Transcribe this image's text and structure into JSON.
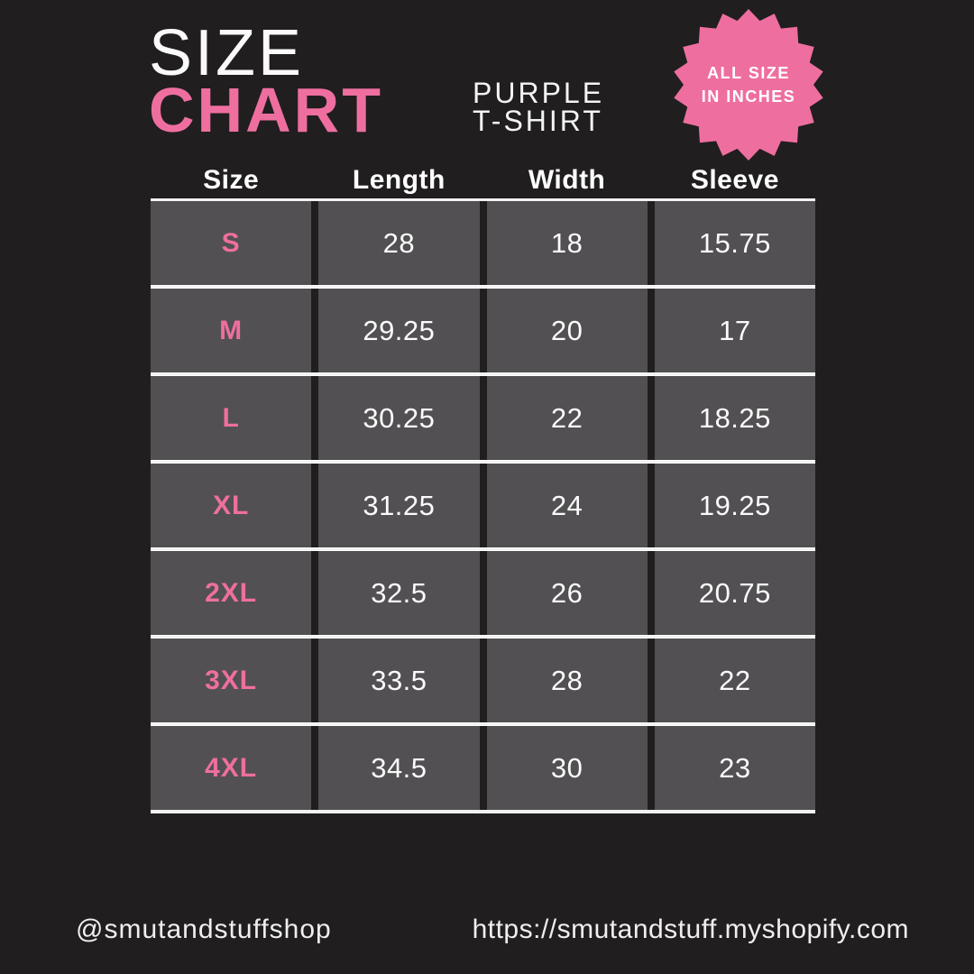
{
  "colors": {
    "background": "#211E1F",
    "accent_pink": "#EE6F9F",
    "cell_gray": "#525052",
    "text_white": "#FFFFFF"
  },
  "header": {
    "title_line1": "SIZE",
    "title_line2": "CHART",
    "subtitle": "PURPLE\nT-SHIRT",
    "badge": {
      "line1": "ALL SIZE",
      "line2": "IN INCHES"
    }
  },
  "table": {
    "columns": [
      "Size",
      "Length",
      "Width",
      "Sleeve"
    ],
    "rows": [
      {
        "size": "S",
        "length": "28",
        "width": "18",
        "sleeve": "15.75"
      },
      {
        "size": "M",
        "length": "29.25",
        "width": "20",
        "sleeve": "17"
      },
      {
        "size": "L",
        "length": "30.25",
        "width": "22",
        "sleeve": "18.25"
      },
      {
        "size": "XL",
        "length": "31.25",
        "width": "24",
        "sleeve": "19.25"
      },
      {
        "size": "2XL",
        "length": "32.5",
        "width": "26",
        "sleeve": "20.75"
      },
      {
        "size": "3XL",
        "length": "33.5",
        "width": "28",
        "sleeve": "22"
      },
      {
        "size": "4XL",
        "length": "34.5",
        "width": "30",
        "sleeve": "23"
      }
    ]
  },
  "footer": {
    "handle": "@smutandstuffshop",
    "url": "https://smutandstuff.myshopify.com"
  },
  "chart_data": {
    "type": "table",
    "title": "Size Chart — Purple T-Shirt",
    "note": "All size in inches",
    "categories": [
      "S",
      "M",
      "L",
      "XL",
      "2XL",
      "3XL",
      "4XL"
    ],
    "series": [
      {
        "name": "Length",
        "values": [
          28,
          29.25,
          30.25,
          31.25,
          32.5,
          33.5,
          34.5
        ]
      },
      {
        "name": "Width",
        "values": [
          18,
          20,
          22,
          24,
          26,
          28,
          30
        ]
      },
      {
        "name": "Sleeve",
        "values": [
          15.75,
          17,
          18.25,
          19.25,
          20.75,
          22,
          23
        ]
      }
    ]
  }
}
